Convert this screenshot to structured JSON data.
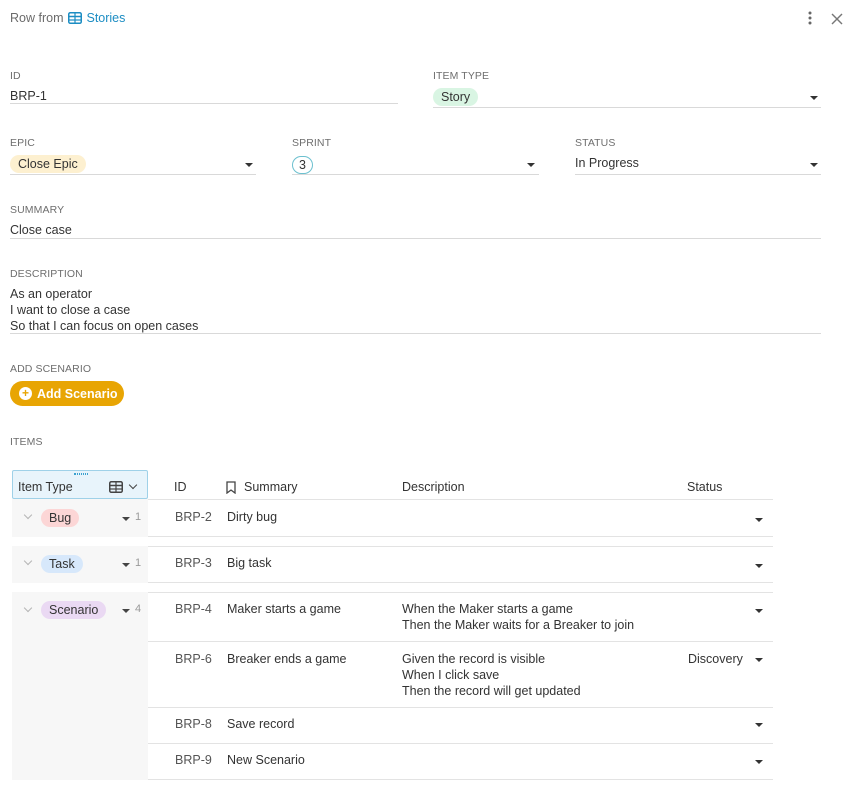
{
  "header": {
    "prefix": "Row from",
    "table_name": "Stories"
  },
  "fields": {
    "id": {
      "label": "ID",
      "value": "BRP-1"
    },
    "item_type": {
      "label": "ITEM TYPE",
      "value": "Story"
    },
    "epic": {
      "label": "EPIC",
      "value": "Close Epic"
    },
    "sprint": {
      "label": "SPRINT",
      "value": "3"
    },
    "status": {
      "label": "STATUS",
      "value": "In Progress"
    },
    "summary": {
      "label": "SUMMARY",
      "value": "Close case"
    },
    "description": {
      "label": "DESCRIPTION",
      "lines": [
        "As an operator",
        "I want to close a case",
        "So that I can focus on open cases"
      ]
    },
    "add_scenario": {
      "label": "ADD SCENARIO",
      "button": "Add Scenario"
    },
    "items": {
      "label": "ITEMS"
    }
  },
  "table": {
    "group_header": "Item Type",
    "columns": [
      "ID",
      "Summary",
      "Description",
      "Status"
    ],
    "groups": [
      {
        "type": "Bug",
        "count": "1",
        "rows": [
          {
            "id": "BRP-2",
            "summary": "Dirty bug",
            "description": [],
            "status": ""
          }
        ]
      },
      {
        "type": "Task",
        "count": "1",
        "rows": [
          {
            "id": "BRP-3",
            "summary": "Big task",
            "description": [],
            "status": ""
          }
        ]
      },
      {
        "type": "Scenario",
        "count": "4",
        "rows": [
          {
            "id": "BRP-4",
            "summary": "Maker starts a game",
            "description": [
              "When the Maker starts a game",
              "Then the Maker waits for a Breaker to join"
            ],
            "status": ""
          },
          {
            "id": "BRP-6",
            "summary": "Breaker ends a game",
            "description": [
              "Given the record is visible",
              "When I click save",
              "Then the record will get updated"
            ],
            "status": "Discovery"
          },
          {
            "id": "BRP-8",
            "summary": "Save record",
            "description": [],
            "status": ""
          },
          {
            "id": "BRP-9",
            "summary": "New Scenario",
            "description": [],
            "status": ""
          }
        ]
      }
    ]
  },
  "colors": {
    "accent_link": "#1c8dc3",
    "add_button": "#e8a503"
  }
}
